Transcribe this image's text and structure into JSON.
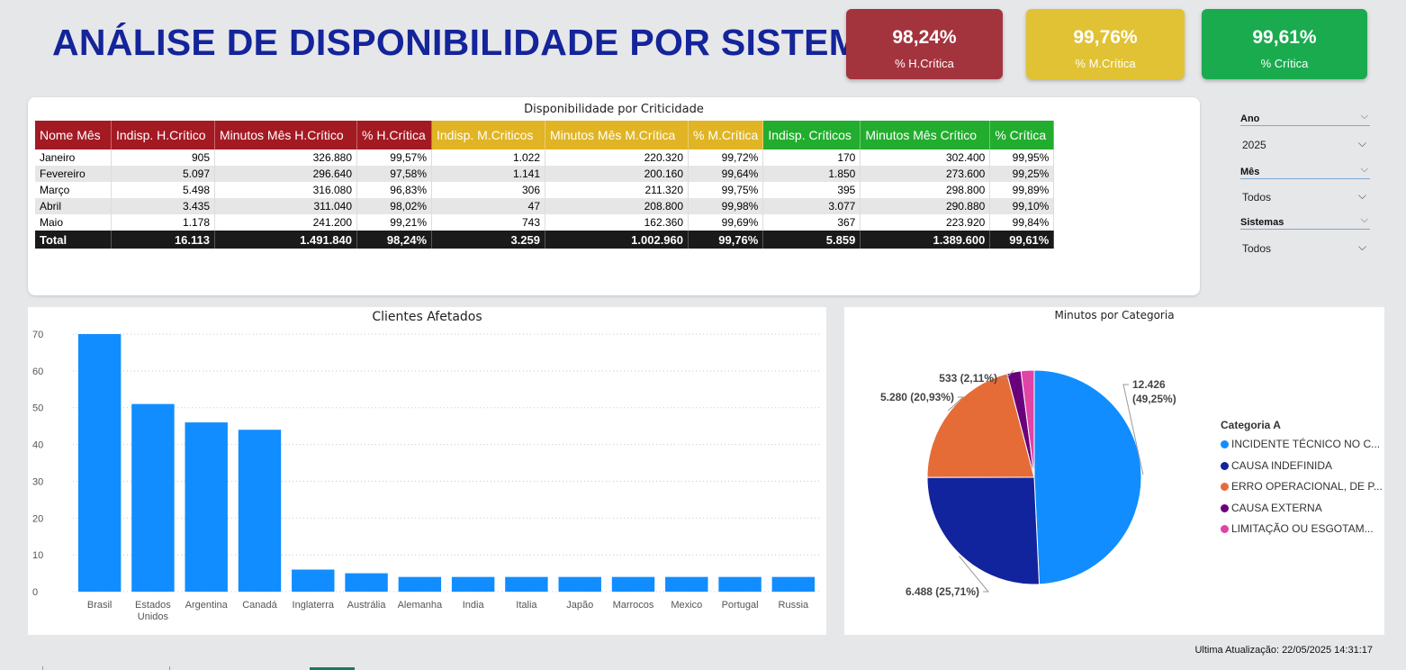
{
  "header": {
    "title": "ANÁLISE DE DISPONIBILIDADE POR SISTEMA"
  },
  "kpis": [
    {
      "value": "98,24%",
      "label": "% H.Crítica",
      "color": "#a3343e"
    },
    {
      "value": "99,76%",
      "label": "% M.Crítica",
      "color": "#e1c234"
    },
    {
      "value": "99,61%",
      "label": "% Crítica",
      "color": "#1aab4f"
    }
  ],
  "table": {
    "title": "Disponibilidade por Criticidade",
    "headers": [
      "Nome Mês",
      "Indisp. H.Crítico",
      "Minutos Mês H.Crítico",
      "% H.Crítica",
      "Indisp. M.Criticos",
      "Minutos Mês M.Crítica",
      "% M.Crítica",
      "Indisp. Críticos",
      "Minutos Mês Crítico",
      "% Crítica"
    ],
    "header_colors": [
      "#a31a23",
      "#a31a23",
      "#a31a23",
      "#a31a23",
      "#e0b424",
      "#e0b424",
      "#e0b424",
      "#22ad2e",
      "#22ad2e",
      "#22ad2e"
    ],
    "rows": [
      [
        "Janeiro",
        "905",
        "326.880",
        "99,57%",
        "1.022",
        "220.320",
        "99,72%",
        "170",
        "302.400",
        "99,95%"
      ],
      [
        "Fevereiro",
        "5.097",
        "296.640",
        "97,58%",
        "1.141",
        "200.160",
        "99,64%",
        "1.850",
        "273.600",
        "99,25%"
      ],
      [
        "Março",
        "5.498",
        "316.080",
        "96,83%",
        "306",
        "211.320",
        "99,75%",
        "395",
        "298.800",
        "99,89%"
      ],
      [
        "Abril",
        "3.435",
        "311.040",
        "98,02%",
        "47",
        "208.800",
        "99,98%",
        "3.077",
        "290.880",
        "99,10%"
      ],
      [
        "Maio",
        "1.178",
        "241.200",
        "99,21%",
        "743",
        "162.360",
        "99,69%",
        "367",
        "223.920",
        "99,84%"
      ]
    ],
    "total": [
      "Total",
      "16.113",
      "1.491.840",
      "98,24%",
      "3.259",
      "1.002.960",
      "99,76%",
      "5.859",
      "1.389.600",
      "99,61%"
    ]
  },
  "slicers": [
    {
      "label": "Ano",
      "value": "2025"
    },
    {
      "label": "Mês",
      "value": "Todos"
    },
    {
      "label": "Sistemas",
      "value": "Todos"
    }
  ],
  "chart_data": [
    {
      "type": "bar",
      "title": "Clientes Afetados",
      "categories": [
        "Brasil",
        "Estados Unidos",
        "Argentina",
        "Canadá",
        "Inglaterra",
        "Austrália",
        "Alemanha",
        "India",
        "Italia",
        "Japão",
        "Marrocos",
        "Mexico",
        "Portugal",
        "Russia"
      ],
      "values": [
        70,
        51,
        46,
        44,
        6,
        5,
        4,
        4,
        4,
        4,
        4,
        4,
        4,
        4
      ],
      "yticks": [
        0,
        10,
        20,
        30,
        40,
        50,
        60,
        70
      ],
      "ylim": [
        0,
        75
      ],
      "color": "#118dff",
      "grid": true
    },
    {
      "type": "pie",
      "title": "Minutos por Categoria",
      "legend_title": "Categoria A",
      "legend_position": "right",
      "slices": [
        {
          "name": "INCIDENTE TÉCNICO NO C...",
          "value": 12426,
          "label": "12.426 (49,25%)",
          "color": "#118dff"
        },
        {
          "name": "CAUSA INDEFINIDA",
          "value": 6488,
          "label": "6.488 (25,71%)",
          "color": "#12239e"
        },
        {
          "name": "ERRO OPERACIONAL, DE P...",
          "value": 5280,
          "label": "5.280 (20,93%)",
          "color": "#e66c37"
        },
        {
          "name": "CAUSA EXTERNA",
          "value": 533,
          "label": "533 (2,11%)",
          "color": "#6b007b"
        },
        {
          "name": "LIMITAÇÃO OU ESGOTAM...",
          "value": 500,
          "label": "",
          "color": "#e044a7"
        }
      ]
    }
  ],
  "footer": {
    "updated": "Ultima Atualização: 22/05/2025 14:31:17"
  }
}
